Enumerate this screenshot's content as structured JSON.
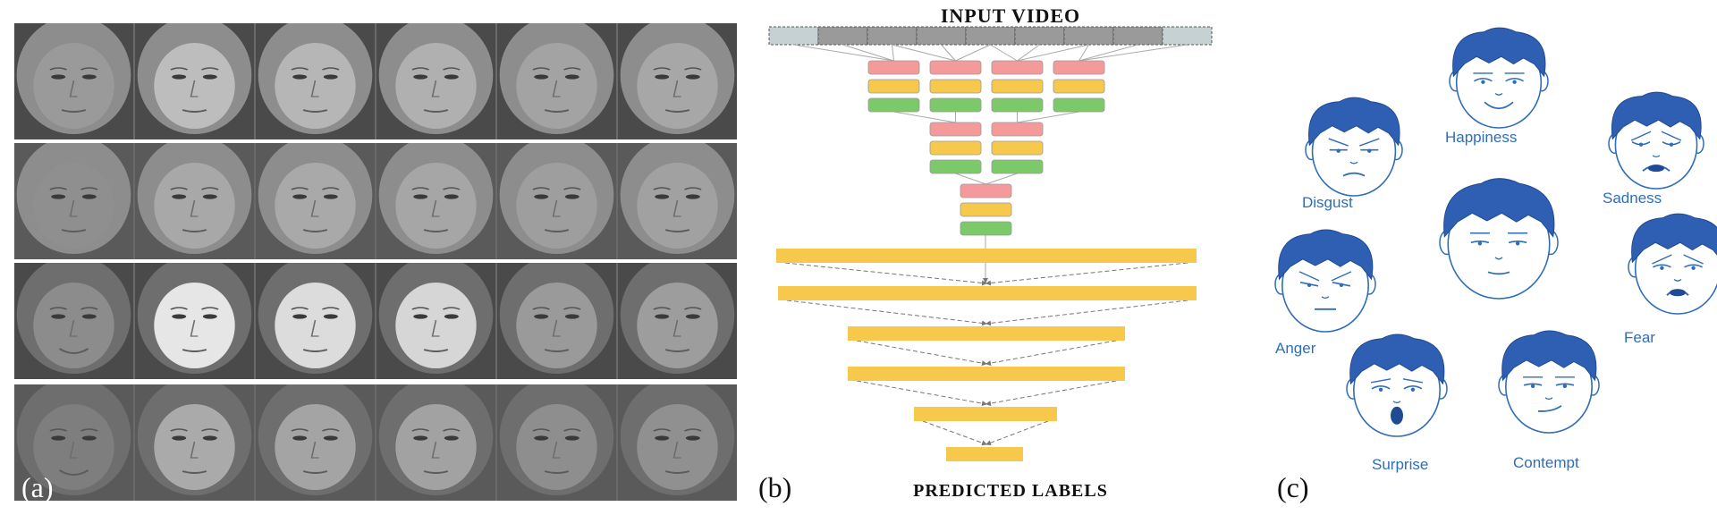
{
  "panel_a": {
    "label": "(a)",
    "rows": [
      {
        "tones": [
          "#9a9a9a",
          "#bdbdbd",
          "#b6b6b6",
          "#b0b0b0",
          "#a3a3a3",
          "#a7a7a7"
        ]
      },
      {
        "tones": [
          "#8f8f8f",
          "#a8a8a8",
          "#a9a9a9",
          "#a6a6a6",
          "#9e9e9e",
          "#a1a1a1"
        ]
      },
      {
        "tones": [
          "#8c8c8c",
          "#e6e6e6",
          "#dcdcdc",
          "#d6d6d6",
          "#9a9a9a",
          "#9d9d9d"
        ]
      },
      {
        "tones": [
          "#7e7e7e",
          "#aaaaaa",
          "#a4a4a4",
          "#a2a2a2",
          "#8e8e8e",
          "#909090"
        ]
      }
    ]
  },
  "panel_b": {
    "label": "(b)",
    "title_top": "INPUT VIDEO",
    "title_bottom": "PREDICTED LABELS",
    "colors": {
      "red": "#f49a9a",
      "yellow": "#f6c94d",
      "green": "#7cc96a",
      "frame_dark": "#9a9a9a",
      "frame_light": "#c5d1d3"
    }
  },
  "panel_c": {
    "label": "(c)",
    "line_color": "#2f6db8",
    "hair_color": "#2f5fb3",
    "emotions": [
      {
        "name": "Disgust"
      },
      {
        "name": "Happiness"
      },
      {
        "name": "Sadness"
      },
      {
        "name": "Anger"
      },
      {
        "name": "Fear"
      },
      {
        "name": "Surprise"
      },
      {
        "name": "Contempt"
      }
    ]
  }
}
